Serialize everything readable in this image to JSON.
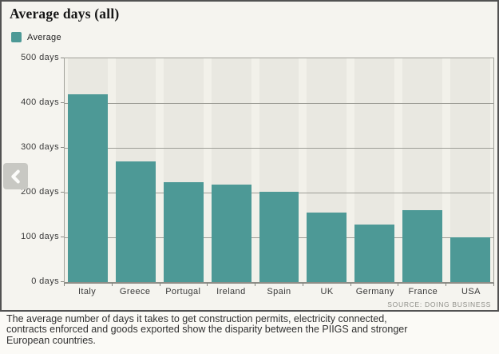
{
  "header": {
    "title": "Average days (all)"
  },
  "legend": {
    "items": [
      {
        "label": "Average",
        "color": "#4d9996"
      }
    ]
  },
  "chart_data": {
    "type": "bar",
    "title": "Average days (all)",
    "categories": [
      "Italy",
      "Greece",
      "Portugal",
      "Ireland",
      "Spain",
      "UK",
      "Germany",
      "France",
      "USA"
    ],
    "values": [
      420,
      270,
      224,
      217,
      202,
      155,
      128,
      161,
      100
    ],
    "series_name": "Average",
    "xlabel": "",
    "ylabel": "days",
    "yticks": [
      "500 days",
      "400 days",
      "300 days",
      "200 days",
      "100 days",
      "0 days"
    ],
    "ylim": [
      0,
      500
    ],
    "grid": true,
    "legend_position": "top-left",
    "bar_color": "#4d9996",
    "source": "SOURCE: DOING BUSINESS"
  },
  "caption": {
    "lines": [
      "The average number of days it takes to get construction permits, electricity connected,",
      "contracts enforced and goods exported show the disparity between the PIIGS and stronger",
      "European countries."
    ]
  },
  "icons": {
    "prev": "chevron-left-icon"
  }
}
